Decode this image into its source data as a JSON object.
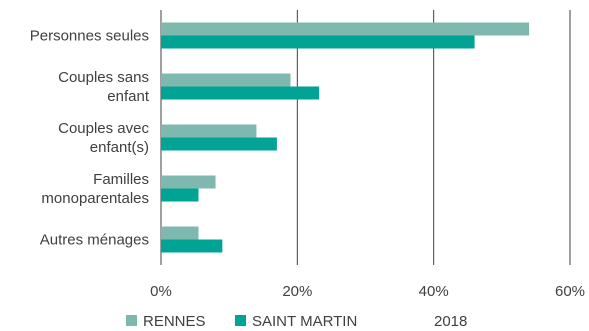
{
  "chart_data": {
    "type": "bar",
    "orientation": "horizontal",
    "categories": [
      [
        "Personnes seules"
      ],
      [
        "Couples sans",
        "enfant"
      ],
      [
        "Couples avec",
        "enfant(s)"
      ],
      [
        "Familles",
        "monoparentales"
      ],
      [
        "Autres ménages"
      ]
    ],
    "series": [
      {
        "name": "RENNES",
        "color": "#7fb8ae",
        "values": [
          54,
          19,
          14,
          8,
          5.5
        ]
      },
      {
        "name": "SAINT MARTIN",
        "color": "#00a394",
        "values": [
          46,
          23.2,
          17,
          5.5,
          9
        ]
      }
    ],
    "x_ticks": [
      "0%",
      "20%",
      "40%",
      "60%"
    ],
    "xlim": [
      0,
      60
    ],
    "grid": true,
    "legend_position": "bottom",
    "legend_extra_label": "2018",
    "title": "",
    "xlabel": "",
    "ylabel": ""
  }
}
